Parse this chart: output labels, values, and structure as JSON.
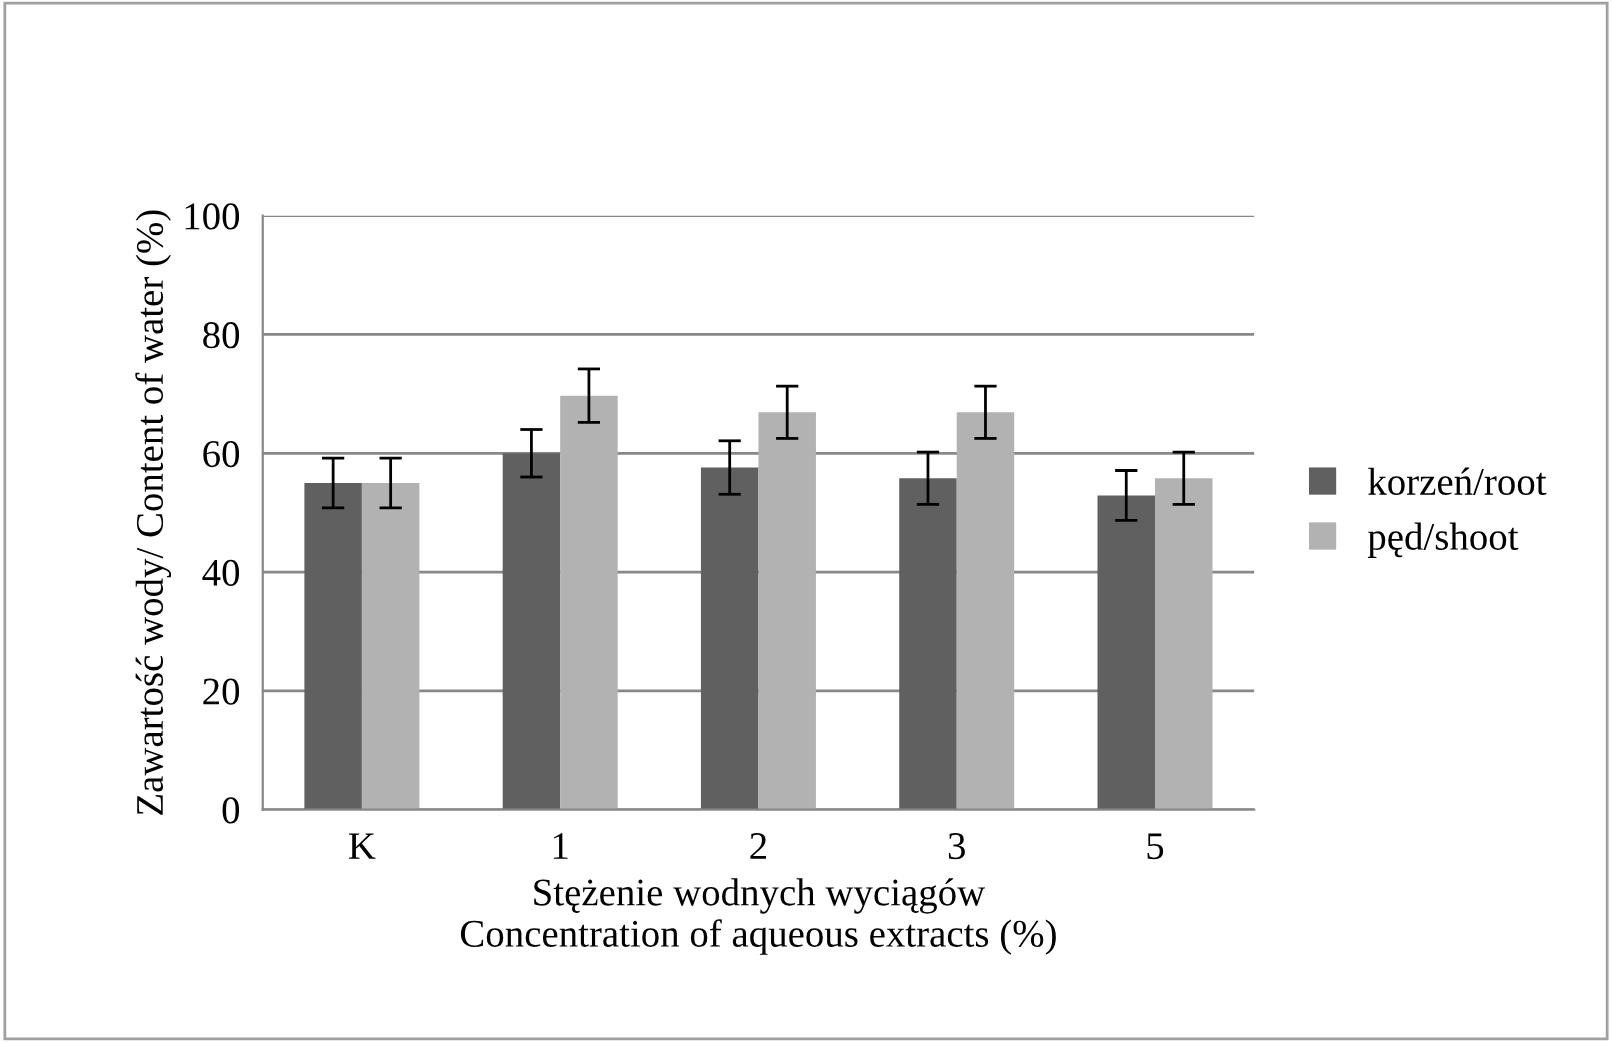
{
  "chart_data": {
    "type": "bar",
    "xlabel": "Stężenie wodnych wyciągów\nConcentration of aqueous extracts (%)",
    "ylabel": "Zawartość wody/ Content of water (%)",
    "categories": [
      "K",
      "1",
      "2",
      "3",
      "5"
    ],
    "series": [
      {
        "name": "korzeń/root",
        "color": "#606060",
        "values": [
          55,
          60,
          57.6,
          55.8,
          52.9
        ],
        "errors": [
          4.2,
          4,
          4.5,
          4.4,
          4.2
        ]
      },
      {
        "name": "pęd/shoot",
        "color": "#b2b2b2",
        "values": [
          55,
          69.7,
          66.9,
          66.9,
          55.8
        ],
        "errors": [
          4.2,
          4.5,
          4.4,
          4.4,
          4.4
        ]
      }
    ],
    "ylim": [
      0,
      100
    ],
    "yticks": [
      0,
      20,
      40,
      60,
      80,
      100
    ],
    "grid": "y",
    "legend": "right"
  }
}
